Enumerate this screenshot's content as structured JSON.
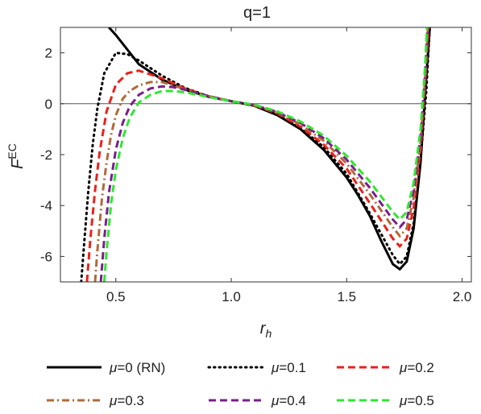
{
  "chart_data": {
    "type": "line",
    "title": "q=1",
    "xlabel": "r",
    "xlabel_sub": "h",
    "ylabel": "F",
    "ylabel_sup": "EC",
    "xlim": [
      0.26,
      2.04
    ],
    "ylim": [
      -7.0,
      3.0
    ],
    "xticks": [
      0.5,
      1.0,
      1.5,
      2.0
    ],
    "xtick_labels": [
      "0.5",
      "1.0",
      "1.5",
      "2.0"
    ],
    "yticks": [
      2,
      0,
      -2,
      -4,
      -6
    ],
    "ytick_labels": [
      "2",
      "0",
      "-2",
      "-4",
      "-6"
    ],
    "zero_line": true,
    "grid": false,
    "legend_position": "bottom",
    "series": [
      {
        "name": "μ=0 (RN)",
        "color": "#000000",
        "dash": "solid",
        "x": [
          0.47,
          0.5,
          0.6,
          0.7,
          0.8,
          0.9,
          1.0,
          1.1,
          1.2,
          1.3,
          1.4,
          1.5,
          1.55,
          1.6,
          1.65,
          1.7,
          1.73,
          1.76,
          1.79,
          1.82,
          1.84,
          1.86
        ],
        "y": [
          3.0,
          2.7,
          1.55,
          0.95,
          0.55,
          0.28,
          0.1,
          -0.08,
          -0.45,
          -1.0,
          -1.8,
          -2.9,
          -3.6,
          -4.4,
          -5.4,
          -6.3,
          -6.5,
          -6.2,
          -4.9,
          -2.3,
          0.4,
          3.0
        ]
      },
      {
        "name": "μ=0.1",
        "color": "#000000",
        "dash": "dotted",
        "x": [
          0.35,
          0.36,
          0.38,
          0.4,
          0.42,
          0.45,
          0.5,
          0.55,
          0.6,
          0.7,
          0.8,
          0.9,
          1.0,
          1.1,
          1.2,
          1.3,
          1.4,
          1.5,
          1.6,
          1.7,
          1.73,
          1.76,
          1.79,
          1.82,
          1.845,
          1.86
        ],
        "y": [
          -7.0,
          -5.8,
          -3.5,
          -1.6,
          -0.2,
          1.2,
          2.0,
          1.95,
          1.7,
          1.1,
          0.62,
          0.3,
          0.1,
          -0.08,
          -0.42,
          -0.95,
          -1.7,
          -2.75,
          -4.3,
          -5.95,
          -6.3,
          -6.0,
          -4.7,
          -2.2,
          0.5,
          3.0
        ]
      },
      {
        "name": "μ=0.2",
        "color": "#e8221c",
        "dash": "dashed",
        "x": [
          0.375,
          0.39,
          0.41,
          0.43,
          0.46,
          0.5,
          0.55,
          0.6,
          0.7,
          0.8,
          0.9,
          1.0,
          1.1,
          1.2,
          1.3,
          1.4,
          1.5,
          1.6,
          1.7,
          1.73,
          1.76,
          1.79,
          1.82,
          1.84,
          1.855
        ],
        "y": [
          -7.0,
          -5.3,
          -3.4,
          -1.9,
          -0.3,
          0.75,
          1.2,
          1.3,
          1.0,
          0.6,
          0.3,
          0.1,
          -0.07,
          -0.38,
          -0.9,
          -1.6,
          -2.55,
          -3.9,
          -5.3,
          -5.6,
          -5.3,
          -4.1,
          -1.8,
          0.8,
          3.0
        ]
      },
      {
        "name": "μ=0.3",
        "color": "#b06a3b",
        "dash": "dashdot",
        "x": [
          0.41,
          0.42,
          0.44,
          0.46,
          0.48,
          0.5,
          0.53,
          0.56,
          0.6,
          0.65,
          0.7,
          0.8,
          0.9,
          1.0,
          1.1,
          1.2,
          1.3,
          1.4,
          1.5,
          1.6,
          1.7,
          1.73,
          1.76,
          1.79,
          1.82,
          1.84,
          1.852
        ],
        "y": [
          -7.0,
          -5.8,
          -3.7,
          -2.3,
          -1.2,
          -0.45,
          0.2,
          0.5,
          0.72,
          0.85,
          0.85,
          0.57,
          0.3,
          0.1,
          -0.06,
          -0.35,
          -0.82,
          -1.45,
          -2.35,
          -3.55,
          -4.85,
          -5.2,
          -4.9,
          -3.7,
          -1.5,
          1.0,
          3.0
        ]
      },
      {
        "name": "μ=0.4",
        "color": "#7a1f8a",
        "dash": "dashed",
        "x": [
          0.435,
          0.45,
          0.47,
          0.5,
          0.53,
          0.56,
          0.6,
          0.65,
          0.7,
          0.75,
          0.8,
          0.9,
          1.0,
          1.1,
          1.2,
          1.3,
          1.4,
          1.5,
          1.6,
          1.7,
          1.73,
          1.76,
          1.79,
          1.82,
          1.84,
          1.85
        ],
        "y": [
          -7.0,
          -5.3,
          -3.5,
          -1.8,
          -0.75,
          -0.1,
          0.35,
          0.6,
          0.68,
          0.65,
          0.55,
          0.3,
          0.1,
          -0.05,
          -0.33,
          -0.76,
          -1.35,
          -2.2,
          -3.3,
          -4.55,
          -4.85,
          -4.55,
          -3.4,
          -1.3,
          1.2,
          3.0
        ]
      },
      {
        "name": "μ=0.5",
        "color": "#2ee82e",
        "dash": "dashed",
        "x": [
          0.45,
          0.46,
          0.48,
          0.5,
          0.53,
          0.56,
          0.6,
          0.65,
          0.7,
          0.75,
          0.8,
          0.9,
          1.0,
          1.1,
          1.2,
          1.3,
          1.4,
          1.5,
          1.6,
          1.7,
          1.73,
          1.76,
          1.79,
          1.82,
          1.84,
          1.848
        ],
        "y": [
          -7.0,
          -5.8,
          -3.9,
          -2.6,
          -1.35,
          -0.55,
          0.05,
          0.35,
          0.5,
          0.5,
          0.45,
          0.27,
          0.1,
          -0.04,
          -0.3,
          -0.7,
          -1.25,
          -2.05,
          -3.05,
          -4.25,
          -4.55,
          -4.25,
          -3.1,
          -1.0,
          1.5,
          3.0
        ]
      }
    ]
  }
}
